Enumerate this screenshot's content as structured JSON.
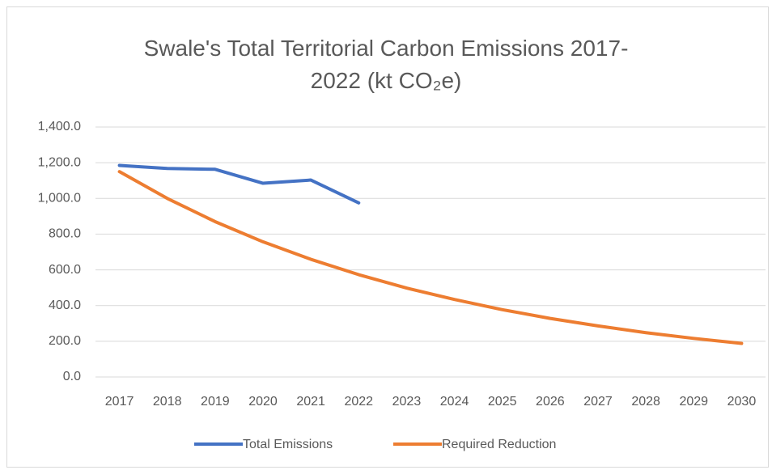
{
  "chart_data": {
    "type": "line",
    "title": "Swale's Total Territorial Carbon Emissions 2017-2022 (kt CO₂e)",
    "categories": [
      "2017",
      "2018",
      "2019",
      "2020",
      "2021",
      "2022",
      "2023",
      "2024",
      "2025",
      "2026",
      "2027",
      "2028",
      "2029",
      "2030"
    ],
    "series": [
      {
        "name": "Total Emissions",
        "color": "#4472c4",
        "values": [
          1185,
          1168,
          1163,
          1085,
          1103,
          975,
          null,
          null,
          null,
          null,
          null,
          null,
          null,
          null
        ]
      },
      {
        "name": "Required Reduction",
        "color": "#ed7d31",
        "values": [
          1150,
          1000,
          870,
          757,
          659,
          573,
          498,
          434,
          377,
          328,
          286,
          248,
          216,
          188
        ]
      }
    ],
    "ylim": [
      0,
      1400
    ],
    "yticks": [
      {
        "value": 0,
        "label": "0.0"
      },
      {
        "value": 200,
        "label": "200.0"
      },
      {
        "value": 400,
        "label": "400.0"
      },
      {
        "value": 600,
        "label": "600.0"
      },
      {
        "value": 800,
        "label": "800.0"
      },
      {
        "value": 1000,
        "label": "1,000.0"
      },
      {
        "value": 1200,
        "label": "1,200.0"
      },
      {
        "value": 1400,
        "label": "1,400.0"
      }
    ],
    "grid": true,
    "legend": "bottom"
  }
}
